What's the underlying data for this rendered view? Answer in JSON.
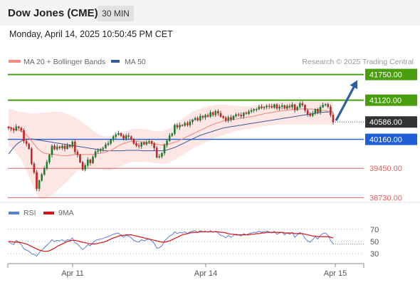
{
  "header": {
    "title": "Dow Jones (CME)",
    "timeframe": "30 MIN",
    "datetime": "Monday, April 14, 2025 10:50:45 PM CET"
  },
  "legend": {
    "ma20_label": "MA 20 + Bollinger Bands",
    "ma50_label": "MA 50",
    "credit": "Research © 2025 Trading Central",
    "rsi_label": "RSI",
    "rsi_ma_label": "9MA"
  },
  "colors": {
    "background": "#ffffff",
    "up_candle": "#1a7f2e",
    "down_candle": "#cc2222",
    "ma20": "#f28b82",
    "bollinger_fill": "#fde3e0",
    "ma50": "#3a5a99",
    "resistance": "#4a9e0e",
    "support": "#1f5fd6",
    "weak_level": "#e06060",
    "current_price_label": "#333333",
    "forecast_arrow": "#2e5f9e",
    "rsi": "#5b7fd6",
    "rsi_ma": "#dd1111"
  },
  "chart_data": [
    {
      "type": "candlestick",
      "xlabel": "",
      "ylabel": "",
      "x_ticks": [
        "Apr 11",
        "Apr 14",
        "Apr 15"
      ],
      "ylim": [
        38650,
        41900
      ],
      "current_price": 40586.0,
      "levels": [
        {
          "value": 41750.0,
          "label": "41750.00",
          "kind": "resistance"
        },
        {
          "value": 41120.0,
          "label": "41120.00",
          "kind": "resistance"
        },
        {
          "value": 40586.0,
          "label": "40586.00",
          "kind": "current"
        },
        {
          "value": 40160.0,
          "label": "40160.00",
          "kind": "pivot"
        },
        {
          "value": 39450.0,
          "label": "39450.00",
          "kind": "support"
        },
        {
          "value": 38730.0,
          "label": "38730.00",
          "kind": "support"
        }
      ],
      "forecast": {
        "from": 40586.0,
        "to": 41750.0,
        "direction": "up"
      },
      "close": [
        40435,
        40410,
        40380,
        40470,
        40440,
        40380,
        40120,
        40050,
        39930,
        39560,
        39350,
        38950,
        39150,
        39300,
        39450,
        39600,
        39780,
        40000,
        39920,
        39980,
        39950,
        40000,
        39930,
        40010,
        39980,
        40100,
        39850,
        39780,
        39600,
        39420,
        39520,
        39660,
        39580,
        39730,
        39860,
        39880,
        39920,
        39950,
        40030,
        40060,
        40150,
        40230,
        40280,
        40310,
        40250,
        40180,
        40250,
        40230,
        40160,
        40060,
        40010,
        39990,
        40080,
        40040,
        40090,
        40110,
        40060,
        39950,
        39720,
        39740,
        39820,
        40020,
        40120,
        40250,
        40300,
        40510,
        40460,
        40510,
        40500,
        40560,
        40510,
        40590,
        40640,
        40680,
        40630,
        40730,
        40700,
        40750,
        40720,
        40820,
        40760,
        40850,
        40800,
        40720,
        40690,
        40620,
        40700,
        40650,
        40730,
        40770,
        40760,
        40730,
        40810,
        40790,
        40840,
        40870,
        40900,
        40900,
        40960,
        40930,
        40950,
        40980,
        40970,
        40940,
        41010,
        40920,
        40960,
        40990,
        40920,
        40980,
        40950,
        41010,
        40880,
        40950,
        41040,
        41000,
        40870,
        40780,
        40740,
        40800,
        40900,
        40830,
        40950,
        41000,
        41020,
        40960,
        40760,
        40586
      ],
      "ma20": [
        40470,
        40450,
        40420,
        40400,
        40380,
        40360,
        40320,
        40270,
        40200,
        40120,
        40040,
        39960,
        39900,
        39850,
        39820,
        39810,
        39800,
        39800,
        39790,
        39780,
        39770,
        39760,
        39760,
        39760,
        39770,
        39780,
        39790,
        39790,
        39790,
        39790,
        39790,
        39790,
        39790,
        39790,
        39800,
        39810,
        39820,
        39830,
        39850,
        39870,
        39890,
        39920,
        39960,
        40000,
        40030,
        40060,
        40080,
        40100,
        40110,
        40120,
        40120,
        40110,
        40100,
        40090,
        40080,
        40070,
        40060,
        40050,
        40040,
        40030,
        40020,
        40030,
        40040,
        40050,
        40070,
        40090,
        40110,
        40140,
        40170,
        40200,
        40230,
        40260,
        40290,
        40320,
        40350,
        40380,
        40410,
        40440,
        40470,
        40500,
        40520,
        40550,
        40570,
        40590,
        40610,
        40620,
        40630,
        40640,
        40650,
        40660,
        40670,
        40680,
        40690,
        40700,
        40710,
        40720,
        40730,
        40740,
        40760,
        40770,
        40790,
        40800,
        40810,
        40820,
        40830,
        40840,
        40850,
        40860,
        40870,
        40880,
        40880,
        40890,
        40890,
        40900,
        40900,
        40910,
        40910,
        40910,
        40900,
        40900,
        40890,
        40880,
        40870,
        40870,
        40860,
        40850,
        40840,
        40830
      ],
      "ma50": [
        39800,
        39880,
        39960,
        40030,
        40080,
        40120,
        40150,
        40160,
        40170,
        40170,
        40160,
        40150,
        40140,
        40130,
        40120,
        40110,
        40100,
        40090,
        40080,
        40070,
        40060,
        40050,
        40040,
        40030,
        40020,
        40010,
        40000,
        39990,
        39980,
        39970,
        39960,
        39950,
        39940,
        39930,
        39920,
        39910,
        39900,
        39890,
        39880,
        39880,
        39880,
        39880,
        39880,
        39880,
        39880,
        39880,
        39890,
        39890,
        39890,
        39890,
        39890,
        39890,
        39880,
        39880,
        39880,
        39880,
        39880,
        39880,
        39880,
        39880,
        39880,
        39890,
        39900,
        39920,
        39940,
        39960,
        39990,
        40020,
        40050,
        40080,
        40110,
        40140,
        40170,
        40200,
        40230,
        40260,
        40280,
        40300,
        40320,
        40340,
        40360,
        40380,
        40400,
        40420,
        40440,
        40450,
        40460,
        40470,
        40480,
        40490,
        40500,
        40510,
        40520,
        40530,
        40540,
        40550,
        40560,
        40570,
        40580,
        40590,
        40600,
        40610,
        40620,
        40630,
        40640,
        40650,
        40660,
        40670,
        40680,
        40690,
        40700,
        40710,
        40720,
        40730,
        40740,
        40750,
        40760,
        40770,
        40780,
        40790,
        40800,
        40810,
        40820,
        40820,
        40830,
        40830,
        40840,
        40840
      ],
      "bb_upper": [
        40900,
        40900,
        40880,
        40860,
        40850,
        40840,
        40830,
        40820,
        40800,
        40790,
        40790,
        40800,
        40800,
        40810,
        40820,
        40820,
        40830,
        40830,
        40840,
        40840,
        40830,
        40820,
        40800,
        40780,
        40760,
        40730,
        40700,
        40660,
        40620,
        40580,
        40530,
        40480,
        40430,
        40380,
        40330,
        40290,
        40260,
        40240,
        40230,
        40230,
        40240,
        40260,
        40280,
        40300,
        40320,
        40340,
        40360,
        40380,
        40400,
        40410,
        40420,
        40420,
        40420,
        40410,
        40400,
        40390,
        40380,
        40370,
        40360,
        40360,
        40360,
        40380,
        40400,
        40430,
        40470,
        40520,
        40570,
        40620,
        40670,
        40720,
        40760,
        40800,
        40840,
        40870,
        40890,
        40910,
        40930,
        40950,
        40970,
        40980,
        40990,
        41000,
        41010,
        41010,
        41010,
        41010,
        41000,
        41000,
        40990,
        40990,
        40980,
        40970,
        40970,
        40970,
        40970,
        40980,
        40990,
        41000,
        41010,
        41020,
        41030,
        41040,
        41050,
        41060,
        41060,
        41070,
        41070,
        41080,
        41080,
        41080,
        41080,
        41080,
        41080,
        41080,
        41080,
        41080,
        41080,
        41080,
        41080,
        41080,
        41080,
        41080,
        41080,
        41080,
        41080,
        41080,
        41080,
        41080
      ],
      "bb_lower": [
        40000,
        39960,
        39900,
        39820,
        39740,
        39640,
        39520,
        39390,
        39250,
        39100,
        38950,
        38820,
        38740,
        38700,
        38700,
        38720,
        38760,
        38800,
        38850,
        38900,
        38960,
        39020,
        39080,
        39140,
        39200,
        39270,
        39330,
        39380,
        39420,
        39440,
        39450,
        39450,
        39450,
        39450,
        39440,
        39430,
        39420,
        39410,
        39400,
        39400,
        39410,
        39420,
        39440,
        39470,
        39500,
        39530,
        39560,
        39580,
        39600,
        39610,
        39610,
        39610,
        39600,
        39600,
        39600,
        39600,
        39590,
        39580,
        39570,
        39560,
        39560,
        39560,
        39570,
        39590,
        39620,
        39650,
        39690,
        39730,
        39770,
        39810,
        39850,
        39890,
        39930,
        39960,
        39990,
        40020,
        40050,
        40080,
        40110,
        40140,
        40170,
        40200,
        40220,
        40240,
        40260,
        40280,
        40300,
        40320,
        40340,
        40360,
        40380,
        40390,
        40400,
        40410,
        40420,
        40430,
        40440,
        40450,
        40460,
        40470,
        40480,
        40490,
        40500,
        40510,
        40510,
        40520,
        40520,
        40520,
        40520,
        40520,
        40520,
        40520,
        40520,
        40520,
        40520,
        40520,
        40520,
        40520,
        40520,
        40520,
        40520,
        40520,
        40520,
        40520,
        40520,
        40520,
        40520,
        40520
      ]
    },
    {
      "type": "line",
      "xlabel": "",
      "ylabel": "",
      "ylim": [
        22,
        78
      ],
      "y_ticks": [
        70,
        50,
        30
      ],
      "series": [
        {
          "name": "RSI",
          "values": [
            50,
            47,
            45,
            52,
            49,
            45,
            38,
            36,
            34,
            30,
            29,
            26,
            32,
            36,
            40,
            44,
            48,
            53,
            50,
            52,
            51,
            53,
            50,
            53,
            52,
            56,
            48,
            46,
            41,
            37,
            40,
            45,
            43,
            48,
            52,
            53,
            54,
            55,
            57,
            58,
            60,
            62,
            63,
            64,
            60,
            57,
            60,
            59,
            56,
            52,
            50,
            49,
            53,
            51,
            53,
            54,
            51,
            47,
            39,
            40,
            43,
            51,
            55,
            59,
            61,
            66,
            63,
            65,
            64,
            66,
            63,
            66,
            67,
            68,
            65,
            68,
            66,
            67,
            65,
            68,
            65,
            67,
            64,
            60,
            59,
            56,
            60,
            57,
            60,
            62,
            61,
            59,
            63,
            61,
            63,
            64,
            65,
            65,
            67,
            65,
            66,
            67,
            66,
            64,
            67,
            62,
            64,
            65,
            61,
            64,
            62,
            65,
            57,
            61,
            65,
            62,
            55,
            51,
            49,
            53,
            58,
            54,
            60,
            63,
            64,
            60,
            52,
            46
          ]
        },
        {
          "name": "9MA",
          "values": [
            50,
            50,
            49,
            49,
            49,
            48,
            47,
            46,
            44,
            42,
            40,
            38,
            36,
            35,
            34,
            34,
            35,
            37,
            39,
            42,
            44,
            46,
            48,
            50,
            51,
            52,
            52,
            51,
            50,
            49,
            48,
            47,
            46,
            46,
            46,
            47,
            48,
            49,
            50,
            52,
            54,
            56,
            57,
            59,
            60,
            60,
            61,
            61,
            61,
            60,
            59,
            58,
            57,
            56,
            55,
            54,
            53,
            52,
            51,
            50,
            49,
            49,
            50,
            51,
            53,
            55,
            57,
            59,
            61,
            62,
            63,
            64,
            65,
            65,
            65,
            66,
            66,
            66,
            66,
            66,
            66,
            66,
            66,
            65,
            65,
            64,
            63,
            62,
            62,
            61,
            61,
            61,
            61,
            61,
            61,
            62,
            62,
            63,
            63,
            64,
            64,
            65,
            65,
            65,
            65,
            65,
            65,
            65,
            64,
            64,
            64,
            64,
            63,
            63,
            63,
            63,
            62,
            61,
            60,
            59,
            59,
            58,
            58,
            58,
            58,
            58,
            57,
            56
          ]
        }
      ]
    }
  ]
}
